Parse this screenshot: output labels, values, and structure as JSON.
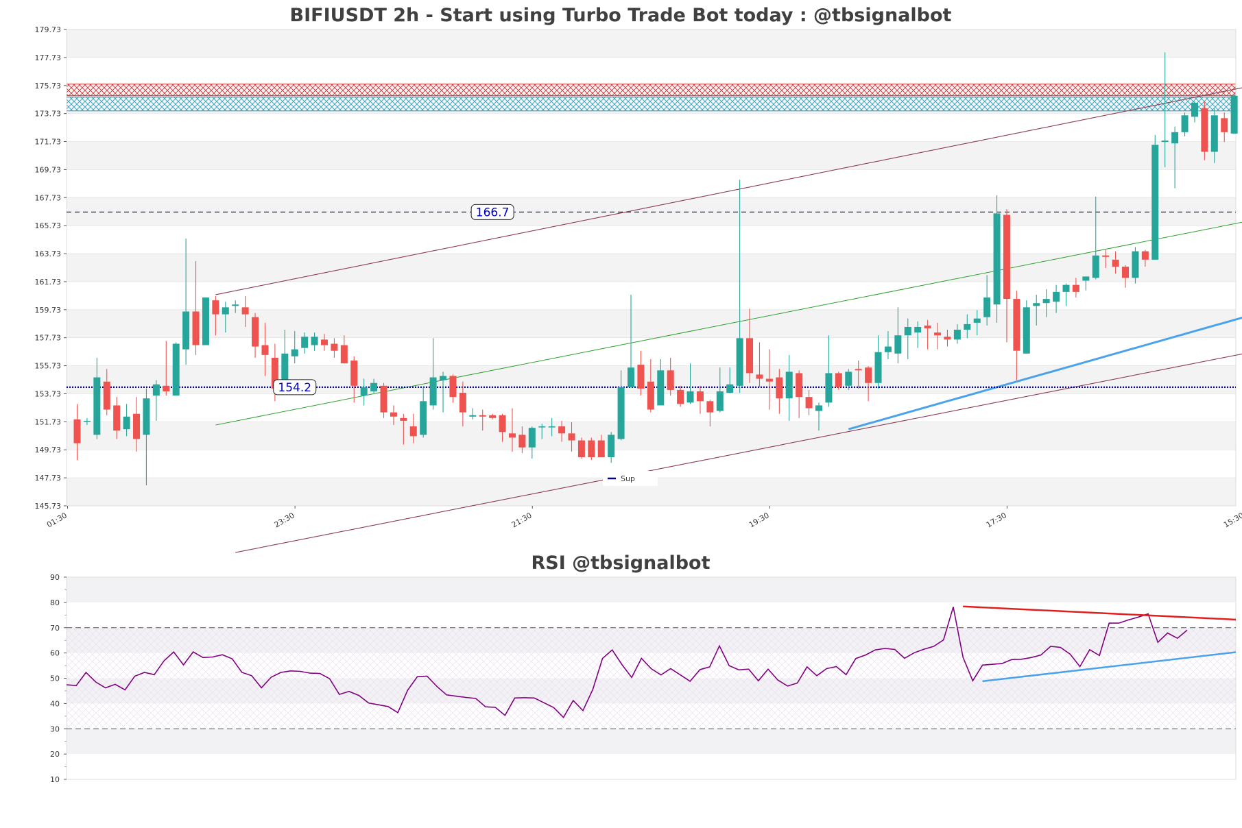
{
  "chart_data": [
    {
      "type": "candlestick",
      "title": "BIFIUSDT 2h - Start using Turbo Trade Bot today : @tbsignalbot",
      "ylim": [
        145.73,
        179.73
      ],
      "y_ticks": [
        "145.73",
        "147.73",
        "149.73",
        "151.73",
        "153.73",
        "155.73",
        "157.73",
        "159.73",
        "161.73",
        "163.73",
        "165.73",
        "167.73",
        "169.73",
        "171.73",
        "173.73",
        "175.73",
        "177.73",
        "179.73"
      ],
      "x_tick_labels": [
        "01:30",
        "23:30",
        "21:30",
        "19:30",
        "17:30",
        "15:30"
      ],
      "x_tick_index": [
        0,
        23,
        47,
        71,
        95,
        119
      ],
      "candles": [
        [
          151.9,
          150.2,
          153.0,
          149.0
        ],
        [
          151.8,
          151.8,
          152.0,
          151.5
        ],
        [
          150.8,
          154.9,
          156.3,
          150.5
        ],
        [
          154.6,
          152.6,
          155.5,
          152.2
        ],
        [
          152.9,
          151.1,
          153.5,
          150.5
        ],
        [
          151.2,
          152.1,
          153.0,
          150.7
        ],
        [
          152.3,
          150.5,
          153.5,
          149.6
        ],
        [
          150.8,
          153.4,
          154.1,
          147.2
        ],
        [
          153.6,
          154.4,
          154.7,
          151.8
        ],
        [
          154.3,
          153.9,
          157.5,
          153.6
        ],
        [
          153.6,
          157.3,
          157.4,
          155.8
        ],
        [
          156.9,
          159.6,
          164.8,
          155.8
        ],
        [
          159.6,
          157.2,
          163.2,
          156.5
        ],
        [
          157.2,
          160.6,
          160.6,
          157.2
        ],
        [
          160.4,
          159.4,
          160.7,
          157.9
        ],
        [
          159.4,
          159.9,
          160.3,
          158.1
        ],
        [
          160.0,
          160.1,
          160.4,
          159.5
        ],
        [
          159.9,
          159.4,
          160.7,
          158.5
        ],
        [
          159.2,
          157.1,
          159.5,
          156.3
        ],
        [
          157.2,
          156.5,
          158.8,
          155.0
        ],
        [
          156.3,
          154.1,
          157.3,
          153.2
        ],
        [
          154.2,
          156.6,
          158.3,
          154.1
        ],
        [
          156.4,
          156.9,
          158.2,
          155.9
        ],
        [
          157.0,
          157.8,
          158.1,
          156.6
        ],
        [
          157.2,
          157.8,
          158.1,
          156.8
        ],
        [
          157.6,
          157.2,
          158.0,
          156.8
        ],
        [
          157.3,
          156.8,
          157.7,
          156.3
        ],
        [
          157.2,
          155.9,
          157.9,
          155.9
        ],
        [
          156.1,
          154.3,
          156.4,
          153.1
        ],
        [
          153.6,
          154.2,
          154.8,
          152.9
        ],
        [
          153.9,
          154.5,
          154.8,
          153.8
        ],
        [
          154.3,
          152.4,
          154.5,
          152.0
        ],
        [
          152.4,
          152.1,
          152.9,
          151.5
        ],
        [
          152.0,
          151.8,
          152.3,
          150.1
        ],
        [
          151.4,
          150.7,
          152.3,
          150.2
        ],
        [
          150.8,
          153.2,
          154.2,
          150.6
        ],
        [
          152.9,
          154.9,
          157.7,
          152.6
        ],
        [
          154.7,
          155.0,
          155.3,
          152.4
        ],
        [
          155.0,
          153.5,
          155.1,
          153.1
        ],
        [
          153.8,
          152.4,
          154.6,
          151.4
        ],
        [
          152.1,
          152.2,
          152.7,
          151.9
        ],
        [
          152.2,
          152.1,
          152.6,
          151.1
        ],
        [
          152.2,
          152.0,
          152.3,
          151.9
        ],
        [
          152.2,
          151.0,
          152.3,
          150.3
        ],
        [
          150.9,
          150.6,
          152.7,
          149.6
        ],
        [
          150.8,
          149.9,
          151.4,
          149.5
        ],
        [
          149.9,
          151.3,
          151.4,
          149.1
        ],
        [
          151.4,
          151.4,
          151.6,
          150.5
        ],
        [
          151.4,
          151.4,
          152.0,
          150.7
        ],
        [
          151.4,
          150.9,
          151.8,
          150.3
        ],
        [
          150.9,
          150.4,
          151.7,
          149.6
        ],
        [
          150.4,
          149.2,
          150.6,
          149.1
        ],
        [
          150.4,
          149.2,
          150.6,
          149.0
        ],
        [
          150.4,
          149.2,
          150.8,
          149.2
        ],
        [
          149.2,
          150.8,
          151.0,
          148.8
        ],
        [
          150.5,
          154.2,
          155.4,
          150.4
        ],
        [
          154.2,
          155.6,
          160.8,
          154.2
        ],
        [
          155.8,
          154.1,
          156.8,
          153.6
        ],
        [
          154.6,
          152.6,
          156.2,
          152.4
        ],
        [
          152.9,
          155.4,
          156.2,
          152.9
        ],
        [
          155.4,
          154.0,
          156.3,
          153.6
        ],
        [
          154.0,
          153.0,
          154.3,
          152.8
        ],
        [
          153.1,
          153.9,
          155.9,
          153.0
        ],
        [
          153.9,
          153.2,
          154.3,
          152.3
        ],
        [
          153.2,
          152.4,
          153.3,
          151.4
        ],
        [
          152.5,
          153.9,
          155.6,
          152.4
        ],
        [
          153.8,
          154.4,
          155.6,
          153.9
        ],
        [
          154.3,
          157.7,
          169.0,
          153.8
        ],
        [
          157.7,
          155.2,
          159.8,
          154.5
        ],
        [
          155.1,
          154.8,
          157.4,
          154.2
        ],
        [
          154.8,
          154.6,
          156.9,
          152.6
        ],
        [
          154.9,
          153.4,
          155.5,
          152.3
        ],
        [
          153.4,
          155.3,
          156.5,
          151.8
        ],
        [
          155.2,
          153.5,
          155.4,
          152.0
        ],
        [
          153.5,
          152.7,
          154.0,
          152.2
        ],
        [
          152.5,
          152.9,
          153.1,
          151.1
        ],
        [
          153.1,
          155.2,
          157.9,
          152.8
        ],
        [
          155.2,
          154.2,
          155.3,
          154.0
        ],
        [
          154.3,
          155.3,
          155.5,
          154.0
        ],
        [
          155.5,
          155.4,
          156.1,
          154.1
        ],
        [
          155.6,
          154.5,
          155.7,
          153.2
        ],
        [
          154.5,
          156.7,
          157.9,
          154.1
        ],
        [
          156.7,
          157.1,
          158.2,
          156.2
        ],
        [
          156.6,
          157.9,
          159.9,
          155.9
        ],
        [
          157.9,
          158.5,
          159.1,
          156.2
        ],
        [
          158.1,
          158.5,
          158.9,
          157.0
        ],
        [
          158.6,
          158.4,
          159.0,
          156.9
        ],
        [
          158.1,
          157.9,
          158.8,
          156.9
        ],
        [
          157.8,
          157.6,
          158.3,
          157.1
        ],
        [
          157.6,
          158.3,
          158.7,
          157.3
        ],
        [
          158.3,
          158.7,
          159.4,
          157.7
        ],
        [
          158.8,
          159.1,
          159.7,
          157.9
        ],
        [
          159.2,
          160.6,
          162.2,
          158.6
        ],
        [
          160.1,
          166.6,
          167.9,
          158.8
        ],
        [
          166.5,
          160.5,
          166.9,
          157.4
        ],
        [
          160.5,
          156.8,
          161.1,
          154.7
        ],
        [
          156.6,
          159.9,
          160.4,
          156.6
        ],
        [
          160.0,
          160.2,
          160.8,
          158.6
        ],
        [
          160.2,
          160.5,
          161.2,
          159.2
        ],
        [
          160.3,
          161.0,
          161.5,
          159.5
        ],
        [
          161.0,
          161.5,
          161.6,
          160.0
        ],
        [
          161.5,
          161.0,
          162.0,
          160.6
        ],
        [
          161.8,
          162.1,
          162.1,
          161.1
        ],
        [
          162.0,
          163.6,
          167.8,
          161.9
        ],
        [
          163.6,
          163.5,
          164.0,
          162.7
        ],
        [
          163.3,
          162.8,
          163.9,
          162.3
        ],
        [
          162.8,
          162.0,
          162.9,
          161.3
        ],
        [
          162.0,
          163.9,
          164.2,
          161.6
        ],
        [
          163.9,
          163.3,
          164.0,
          162.8
        ],
        [
          163.3,
          171.5,
          172.2,
          163.5
        ],
        [
          171.7,
          171.8,
          178.1,
          169.9
        ],
        [
          171.6,
          172.4,
          172.8,
          168.4
        ],
        [
          172.4,
          173.6,
          173.8,
          172.1
        ],
        [
          173.5,
          174.5,
          174.6,
          173.1
        ],
        [
          174.1,
          171.0,
          174.6,
          170.4
        ],
        [
          171.0,
          173.6,
          174.1,
          170.2
        ],
        [
          173.4,
          172.4,
          173.8,
          171.7
        ],
        [
          172.3,
          175.0,
          175.2,
          172.4
        ]
      ],
      "sup_res_zones": [
        {
          "bottom": 175.0,
          "top": 175.83,
          "color": "#d62728",
          "hatch": true
        },
        {
          "bottom": 173.92,
          "top": 174.9,
          "color": "#1f9fbf",
          "hatch": true
        }
      ],
      "levels": [
        {
          "value": 166.7,
          "label": "166.7",
          "color": "#1f1f7f",
          "dash": true
        },
        {
          "value": 154.2,
          "label": "154.2",
          "color": "#0000aa",
          "dotted": true
        }
      ],
      "lines": [
        {
          "x1": 14.0,
          "y1": 160.8,
          "x2": 118.0,
          "y2": 175.6,
          "color": "#8b3a52",
          "width": 1.1
        },
        {
          "x1": 16.0,
          "y1": 142.4,
          "x2": 118.0,
          "y2": 156.6,
          "color": "#8b3a52",
          "width": 1.1
        },
        {
          "x1": 14.0,
          "y1": 151.5,
          "x2": 118.0,
          "y2": 166.0,
          "color": "#2ca02c",
          "width": 1.0
        },
        {
          "x1": 78.0,
          "y1": 151.2,
          "x2": 120.0,
          "y2": 159.6,
          "color": "#4aa3ea",
          "width": 3.0
        }
      ],
      "legend": [
        {
          "name": "Sup",
          "color": "#00008b"
        }
      ],
      "colors": {
        "up": "#26a69a",
        "down": "#ef5350"
      }
    },
    {
      "type": "line",
      "title": "RSI @tbsignalbot",
      "ylim": [
        10,
        90
      ],
      "y_ticks": [
        10,
        20,
        30,
        40,
        50,
        60,
        70,
        80,
        90
      ],
      "hlines": [
        70,
        30
      ],
      "series": [
        {
          "color": "#800080",
          "values": [
            47.4,
            47.1,
            52.3,
            48.5,
            46.2,
            47.6,
            45.4,
            50.8,
            52.3,
            51.4,
            56.9,
            60.4,
            55.3,
            60.4,
            58.2,
            58.4,
            59.3,
            57.7,
            52.3,
            51.0,
            46.2,
            50.4,
            52.3,
            52.9,
            52.7,
            52.0,
            51.9,
            49.8,
            43.6,
            44.8,
            43.2,
            40.2,
            39.5,
            38.8,
            36.4,
            45.2,
            50.6,
            50.8,
            46.8,
            43.4,
            42.9,
            42.4,
            42.0,
            38.7,
            38.5,
            35.3,
            42.2,
            42.3,
            42.2,
            40.3,
            38.4,
            34.5,
            41.2,
            37.2,
            45.5,
            57.8,
            61.2,
            55.4,
            50.3,
            57.9,
            53.8,
            51.3,
            53.8,
            51.3,
            48.8,
            53.4,
            54.5,
            62.8,
            55.0,
            53.3,
            53.6,
            49.0,
            53.6,
            49.3,
            46.9,
            48.1,
            54.5,
            51.0,
            53.8,
            54.6,
            51.4,
            57.8,
            59.2,
            61.2,
            61.8,
            61.4,
            57.9,
            60.1,
            61.5,
            62.6,
            65.2,
            78.2,
            58.3,
            49.0,
            55.2,
            55.5,
            55.8,
            57.4,
            57.5,
            58.2,
            59.2,
            62.6,
            62.2,
            59.5,
            54.6,
            61.3,
            59.0,
            71.8,
            71.8,
            73.1,
            74.2,
            75.5,
            64.2,
            67.9,
            65.8,
            69.0
          ]
        }
      ],
      "lines": [
        {
          "x1": 92.0,
          "y1": 78.4,
          "x2": 120.0,
          "y2": 73.2,
          "color": "#e0201f",
          "width": 2.5
        },
        {
          "x1": 94.0,
          "y1": 48.8,
          "x2": 120.0,
          "y2": 60.3,
          "color": "#4aa3ea",
          "width": 2.5
        }
      ]
    }
  ]
}
